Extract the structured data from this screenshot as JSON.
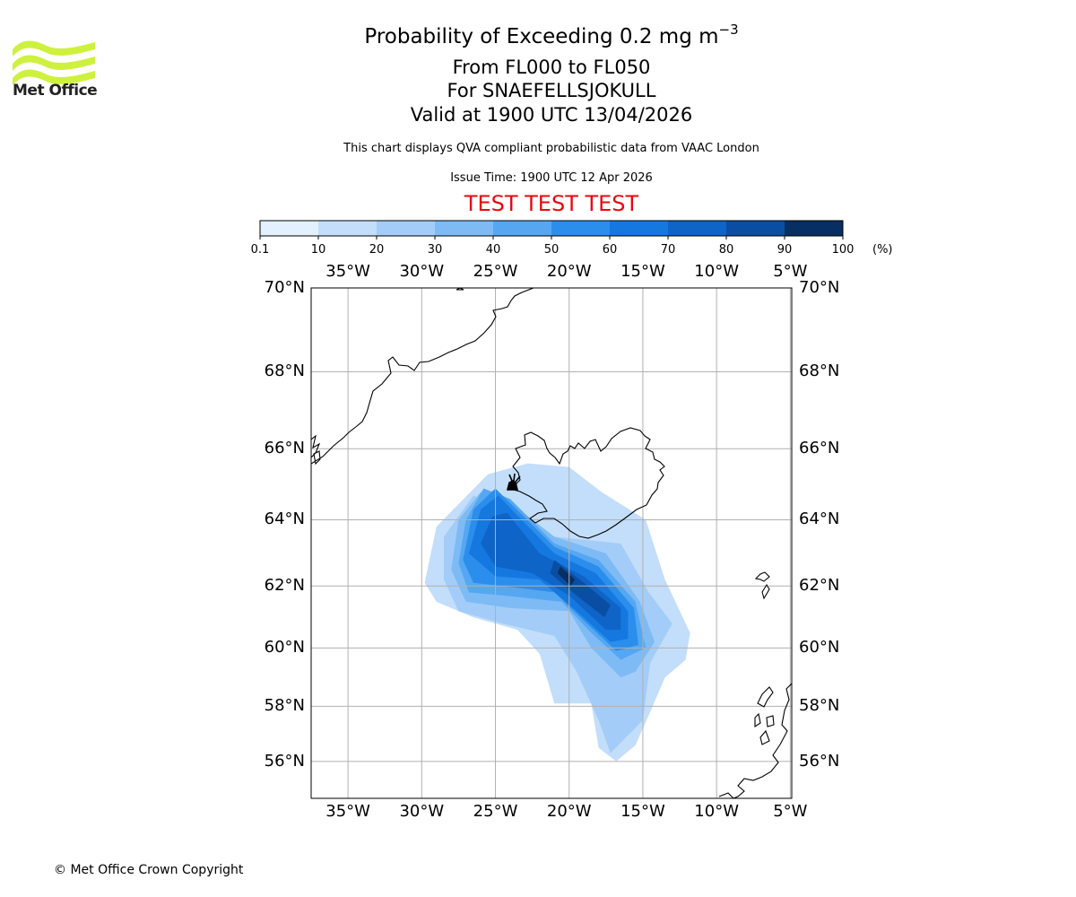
{
  "header": {
    "title_prefix": "Probability of Exceeding 0.2 mg m",
    "title_exponent": "−3",
    "flight_levels": "From FL000 to FL050",
    "location": "For SNAEFELLSJOKULL",
    "valid_time": "Valid at 1900 UTC 13/04/2026",
    "subtitle": "This chart displays QVA compliant probabilistic data from VAAC London",
    "issue_time": "Issue Time: 1900 UTC 12 Apr 2026",
    "test_banner": "TEST TEST TEST"
  },
  "logo": {
    "text": "Met Office",
    "icon": "met-office-wave-icon"
  },
  "colorbar": {
    "ticks": [
      "0.1",
      "10",
      "20",
      "30",
      "40",
      "50",
      "60",
      "70",
      "80",
      "90",
      "100"
    ],
    "unit": "(%)",
    "colors": [
      "#e3f0fd",
      "#c3defa",
      "#a3cdf8",
      "#7ebbf5",
      "#55a7f2",
      "#2b8eec",
      "#1578e0",
      "#0e64c7",
      "#0a4ea4",
      "#072f63"
    ]
  },
  "map": {
    "lon_range": [
      -37.5,
      -4.9
    ],
    "lat_range": [
      54.6,
      70.0
    ],
    "lon_ticks": [
      {
        "value": -35,
        "label": "35°W"
      },
      {
        "value": -30,
        "label": "30°W"
      },
      {
        "value": -25,
        "label": "25°W"
      },
      {
        "value": -20,
        "label": "20°W"
      },
      {
        "value": -15,
        "label": "15°W"
      },
      {
        "value": -10,
        "label": "10°W"
      },
      {
        "value": -5,
        "label": "5°W"
      }
    ],
    "lat_ticks": [
      {
        "value": 70,
        "label": "70°N"
      },
      {
        "value": 68,
        "label": "68°N"
      },
      {
        "value": 66,
        "label": "66°N"
      },
      {
        "value": 64,
        "label": "64°N"
      },
      {
        "value": 62,
        "label": "62°N"
      },
      {
        "value": 60,
        "label": "60°N"
      },
      {
        "value": 58,
        "label": "58°N"
      },
      {
        "value": 56,
        "label": "56°N"
      }
    ],
    "volcano": {
      "name": "SNAEFELLSJOKULL",
      "lon": -23.8,
      "lat": 64.8,
      "icon": "volcano-icon"
    }
  },
  "chart_data": {
    "type": "heatmap",
    "title": "Probability of Exceeding 0.2 mg m−3",
    "units": "%",
    "bins": [
      0.1,
      10,
      20,
      30,
      40,
      50,
      60,
      70,
      80,
      90,
      100
    ],
    "regions": [
      {
        "band": 1,
        "points": [
          [
            -29.8,
            62.1
          ],
          [
            -29.0,
            63.8
          ],
          [
            -25.5,
            65.3
          ],
          [
            -22.8,
            65.6
          ],
          [
            -20.0,
            65.5
          ],
          [
            -17.8,
            64.8
          ],
          [
            -14.8,
            64.0
          ],
          [
            -13.5,
            62.2
          ],
          [
            -11.8,
            60.5
          ],
          [
            -12.1,
            59.6
          ],
          [
            -13.5,
            59.0
          ],
          [
            -14.5,
            57.8
          ],
          [
            -15.5,
            56.6
          ],
          [
            -16.8,
            56.0
          ],
          [
            -18.0,
            56.5
          ],
          [
            -18.5,
            58.1
          ],
          [
            -21.0,
            58.1
          ],
          [
            -22.0,
            59.8
          ],
          [
            -23.5,
            60.6
          ],
          [
            -26.5,
            61.0
          ],
          [
            -29.0,
            61.5
          ]
        ]
      },
      {
        "band": 2,
        "points": [
          [
            -28.5,
            62.2
          ],
          [
            -28.5,
            63.5
          ],
          [
            -26.5,
            64.7
          ],
          [
            -23.5,
            64.2
          ],
          [
            -21.0,
            63.5
          ],
          [
            -16.5,
            63.3
          ],
          [
            -14.6,
            61.8
          ],
          [
            -13.0,
            60.8
          ],
          [
            -14.5,
            59.5
          ],
          [
            -15.0,
            57.5
          ],
          [
            -17.2,
            56.3
          ],
          [
            -18.0,
            57.5
          ],
          [
            -19.5,
            59.2
          ],
          [
            -21.0,
            60.4
          ],
          [
            -24.5,
            60.8
          ],
          [
            -27.5,
            61.2
          ]
        ]
      },
      {
        "band": 3,
        "points": [
          [
            -28.0,
            62.5
          ],
          [
            -27.5,
            64.0
          ],
          [
            -26.0,
            64.8
          ],
          [
            -24.0,
            64.5
          ],
          [
            -21.0,
            63.5
          ],
          [
            -17.5,
            63.0
          ],
          [
            -15.2,
            61.5
          ],
          [
            -14.2,
            60.2
          ],
          [
            -15.5,
            59.2
          ],
          [
            -16.5,
            59.0
          ],
          [
            -18.5,
            60.0
          ],
          [
            -20.0,
            61.2
          ],
          [
            -24.0,
            61.3
          ],
          [
            -27.0,
            61.5
          ]
        ]
      },
      {
        "band": 4,
        "points": [
          [
            -27.5,
            62.7
          ],
          [
            -27.0,
            64.0
          ],
          [
            -25.8,
            64.9
          ],
          [
            -24.0,
            64.6
          ],
          [
            -21.0,
            63.3
          ],
          [
            -18.0,
            62.8
          ],
          [
            -15.5,
            61.5
          ],
          [
            -14.8,
            60.0
          ],
          [
            -16.5,
            59.6
          ],
          [
            -18.5,
            60.5
          ],
          [
            -20.5,
            61.5
          ],
          [
            -24.5,
            61.7
          ],
          [
            -26.8,
            61.8
          ]
        ]
      },
      {
        "band": 5,
        "points": [
          [
            -27.2,
            62.8
          ],
          [
            -26.5,
            64.3
          ],
          [
            -25.0,
            64.9
          ],
          [
            -23.8,
            64.4
          ],
          [
            -21.0,
            63.2
          ],
          [
            -18.0,
            62.6
          ],
          [
            -15.6,
            61.3
          ],
          [
            -15.3,
            60.1
          ],
          [
            -16.8,
            59.9
          ],
          [
            -19.0,
            60.9
          ],
          [
            -21.0,
            61.8
          ],
          [
            -24.5,
            62.0
          ],
          [
            -26.5,
            62.1
          ]
        ]
      },
      {
        "band": 6,
        "points": [
          [
            -26.8,
            63.0
          ],
          [
            -26.0,
            64.3
          ],
          [
            -24.8,
            64.7
          ],
          [
            -23.9,
            64.3
          ],
          [
            -21.0,
            63.0
          ],
          [
            -18.2,
            62.4
          ],
          [
            -16.0,
            61.2
          ],
          [
            -16.0,
            60.3
          ],
          [
            -17.2,
            60.2
          ],
          [
            -19.5,
            61.2
          ],
          [
            -22.0,
            62.2
          ],
          [
            -25.0,
            62.3
          ]
        ]
      },
      {
        "band": 7,
        "points": [
          [
            -26.0,
            63.3
          ],
          [
            -25.2,
            64.1
          ],
          [
            -24.2,
            64.2
          ],
          [
            -22.0,
            63.0
          ],
          [
            -19.0,
            62.3
          ],
          [
            -16.5,
            61.3
          ],
          [
            -16.5,
            60.6
          ],
          [
            -17.5,
            60.6
          ],
          [
            -20.0,
            61.7
          ],
          [
            -22.5,
            62.4
          ],
          [
            -25.0,
            62.6
          ]
        ]
      },
      {
        "band": 8,
        "points": [
          [
            -21.0,
            62.8
          ],
          [
            -19.0,
            62.1
          ],
          [
            -17.2,
            61.4
          ],
          [
            -17.6,
            61.0
          ],
          [
            -19.5,
            61.7
          ],
          [
            -21.3,
            62.4
          ]
        ]
      },
      {
        "band": 9,
        "points": [
          [
            -20.6,
            62.6
          ],
          [
            -19.6,
            62.2
          ],
          [
            -19.9,
            62.0
          ],
          [
            -20.8,
            62.4
          ]
        ]
      }
    ]
  },
  "footer": {
    "copyright": "© Met Office Crown Copyright"
  }
}
